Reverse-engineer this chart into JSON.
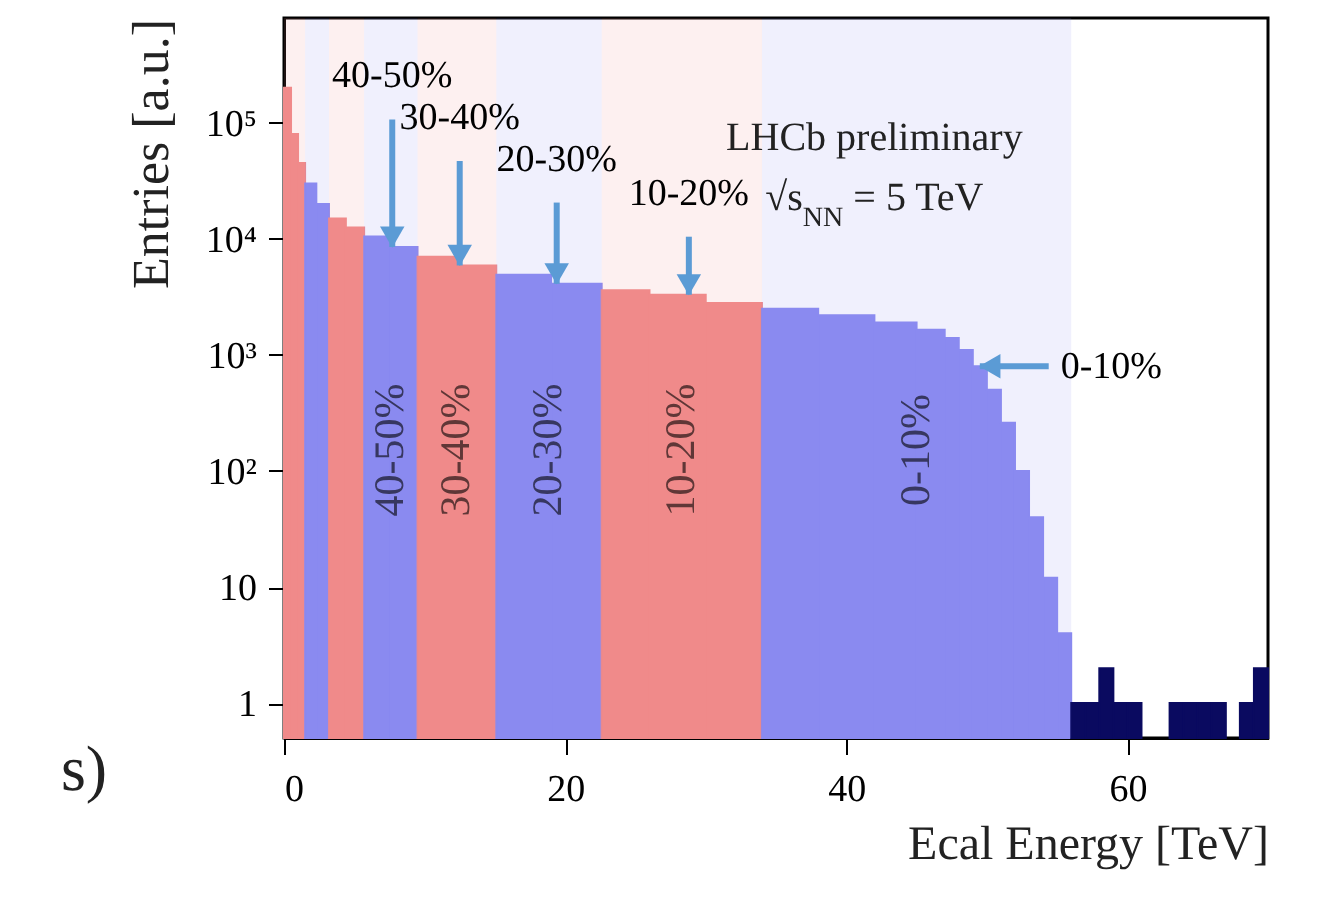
{
  "chart_data": {
    "type": "histogram",
    "xlabel": "Ecal Energy [TeV]",
    "ylabel": "Entries [a.u.]",
    "log": "y",
    "xlim": [
      0,
      70
    ],
    "xticks": [
      0,
      20,
      40,
      60
    ],
    "ylim": [
      0.5,
      800000
    ],
    "yticks": [
      1,
      10,
      {
        "value": 100,
        "label": "10²"
      },
      {
        "value": 1000,
        "label": "10³"
      },
      {
        "value": 10000,
        "label": "10⁴"
      },
      {
        "value": 100000,
        "label": "10⁵"
      }
    ],
    "bins": [
      0,
      0.5,
      1,
      1.5,
      2.3,
      3.2,
      4.4,
      5.7,
      7.6,
      9.5,
      12.3,
      15.1,
      19,
      22.6,
      26,
      30,
      34,
      38,
      42,
      45,
      47,
      48,
      49,
      50,
      51,
      52,
      53,
      54,
      55,
      56,
      57,
      58,
      59,
      60,
      61,
      63,
      64,
      65,
      66,
      67,
      68,
      69,
      70
    ],
    "values": [
      200000,
      80000,
      45000,
      30000,
      20000,
      15000,
      12500,
      10500,
      8500,
      7000,
      5900,
      4900,
      4100,
      3600,
      3300,
      2800,
      2500,
      2200,
      1900,
      1650,
      1400,
      1100,
      800,
      500,
      260,
      100,
      40,
      12,
      4,
      1,
      1,
      2,
      1,
      1,
      null,
      1,
      1,
      1,
      1,
      null,
      1,
      2
    ],
    "colors": [
      "#f08a8a",
      "#f08a8a",
      "#f08a8a",
      "#8a8af0",
      "#8a8af0",
      "#f08a8a",
      "#f08a8a",
      "#8a8af0",
      "#8a8af0",
      "#f08a8a",
      "#f08a8a",
      "#8a8af0",
      "#8a8af0",
      "#f08a8a",
      "#f08a8a",
      "#f08a8a",
      "#8a8af0",
      "#8a8af0",
      "#8a8af0",
      "#8a8af0",
      "#8a8af0",
      "#8a8af0",
      "#8a8af0",
      "#8a8af0",
      "#8a8af0",
      "#8a8af0",
      "#8a8af0",
      "#8a8af0",
      "#8a8af0",
      "#0a0a60",
      "#0a0a60",
      "#0a0a60",
      "#0a0a60",
      "#0a0a60",
      null,
      "#0a0a60",
      "#0a0a60",
      "#0a0a60",
      "#0a0a60",
      null,
      "#0a0a60",
      "#0a0a60"
    ],
    "bands": [
      {
        "axis": "x",
        "from": 0,
        "to": 1.5,
        "label": null,
        "color": "#f08a8a"
      },
      {
        "axis": "x",
        "from": 1.5,
        "to": 3.2,
        "label": null,
        "color": "#8a8af0"
      },
      {
        "axis": "x",
        "from": 3.2,
        "to": 5.7,
        "label": null,
        "color": "#f08a8a"
      },
      {
        "axis": "x",
        "from": 5.7,
        "to": 9.5,
        "label": "40-50%",
        "color": "#8a8af0"
      },
      {
        "axis": "x",
        "from": 9.5,
        "to": 15.1,
        "label": "30-40%",
        "color": "#f08a8a"
      },
      {
        "axis": "x",
        "from": 15.1,
        "to": 22.6,
        "label": "20-30%",
        "color": "#8a8af0"
      },
      {
        "axis": "x",
        "from": 22.6,
        "to": 34,
        "label": "10-20%",
        "color": "#f08a8a"
      },
      {
        "axis": "x",
        "from": 34,
        "to": 56,
        "label": "0-10%",
        "color": "#8a8af0"
      }
    ],
    "annotations": [
      {
        "text": "40-50%",
        "x": 7.7,
        "y": 8500
      },
      {
        "text": "30-40%",
        "x": 12.5,
        "y": 5900
      },
      {
        "text": "20-30%",
        "x": 19.4,
        "y": 4100
      },
      {
        "text": "10-20%",
        "x": 28.8,
        "y": 3300
      },
      {
        "text": "0-10%",
        "x": 49.5,
        "y": 800
      },
      "LHCb preliminary",
      "√s$_{NN}$ = 5 TeV",
      "s)"
    ]
  }
}
